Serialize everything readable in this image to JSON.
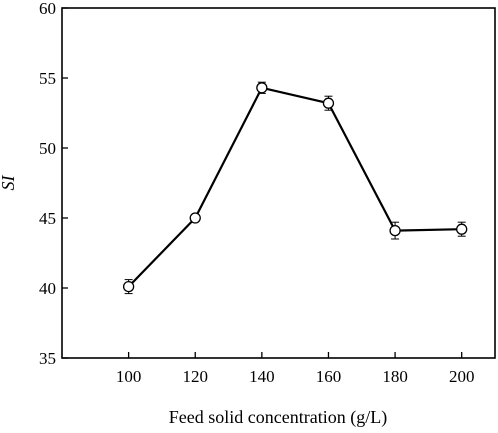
{
  "chart_data": {
    "type": "line",
    "title": "",
    "xlabel": "Feed solid concentration (g/L)",
    "ylabel": "SI",
    "x": [
      100,
      120,
      140,
      160,
      180,
      200
    ],
    "x_ticks": [
      "100",
      "120",
      "140",
      "160",
      "180",
      "200"
    ],
    "xlim": [
      80,
      210
    ],
    "ylim": [
      35,
      60
    ],
    "y_ticks": [
      "35",
      "40",
      "45",
      "50",
      "55",
      "60"
    ],
    "grid": false,
    "legend": "none",
    "series": [
      {
        "values": [
          40.1,
          45.0,
          54.3,
          53.2,
          44.1,
          44.2
        ],
        "errors": [
          0.5,
          0.2,
          0.4,
          0.5,
          0.6,
          0.5
        ],
        "color": "#000000",
        "marker": "open-circle"
      }
    ]
  }
}
